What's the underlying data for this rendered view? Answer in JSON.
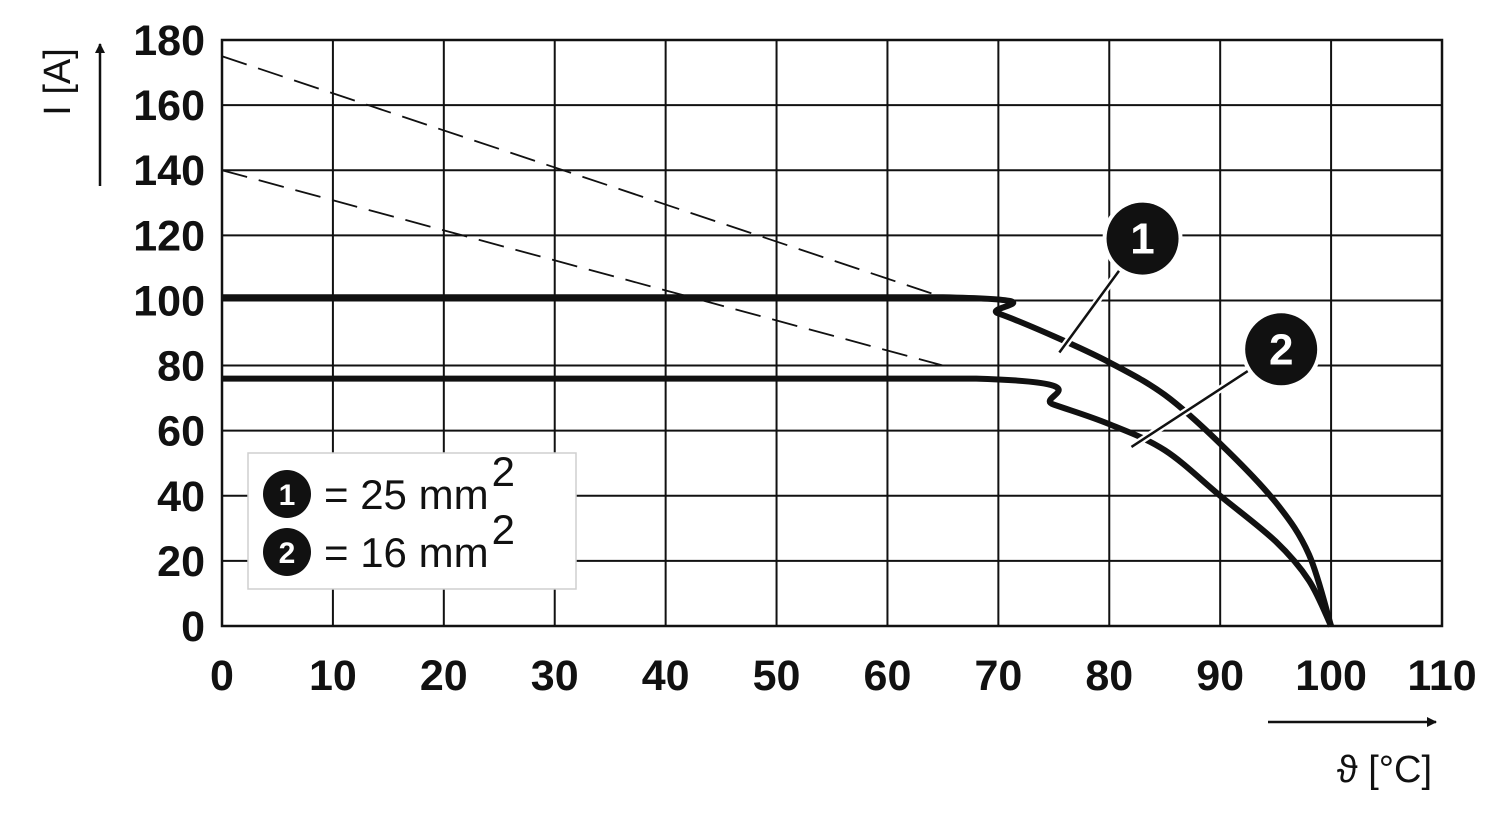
{
  "chart_data": {
    "type": "line",
    "xlabel": "ϑ [°C]",
    "ylabel": "I [A]",
    "xlim": [
      0,
      110
    ],
    "ylim": [
      0,
      180
    ],
    "x_ticks": [
      0,
      10,
      20,
      30,
      40,
      50,
      60,
      70,
      80,
      90,
      100,
      110
    ],
    "y_ticks": [
      0,
      20,
      40,
      60,
      80,
      100,
      120,
      140,
      160,
      180
    ],
    "grid": true,
    "legend": "bottom-left",
    "series": [
      {
        "marker": "1",
        "name": "= 25 mm",
        "name_sup": "2",
        "values": [
          [
            0,
            101
          ],
          [
            65,
            101
          ],
          [
            70,
            96
          ],
          [
            75,
            89
          ],
          [
            80,
            81
          ],
          [
            85,
            71
          ],
          [
            90,
            56
          ],
          [
            95,
            38
          ],
          [
            98,
            22
          ],
          [
            100,
            0
          ]
        ],
        "dashed_extension": [
          [
            0,
            175
          ],
          [
            65,
            101
          ]
        ]
      },
      {
        "marker": "2",
        "name": "= 16 mm",
        "name_sup": "2",
        "values": [
          [
            0,
            76
          ],
          [
            68,
            76
          ],
          [
            75,
            68
          ],
          [
            80,
            62
          ],
          [
            85,
            54
          ],
          [
            90,
            40
          ],
          [
            95,
            26
          ],
          [
            98,
            14
          ],
          [
            100,
            0
          ]
        ],
        "dashed_extension": [
          [
            0,
            140
          ],
          [
            65,
            80
          ]
        ]
      }
    ],
    "callout_markers": [
      {
        "label": "1",
        "at": [
          83,
          119
        ],
        "points_to": [
          75.5,
          84
        ]
      },
      {
        "label": "2",
        "at": [
          95.5,
          85
        ],
        "points_to": [
          82,
          55
        ]
      }
    ]
  }
}
